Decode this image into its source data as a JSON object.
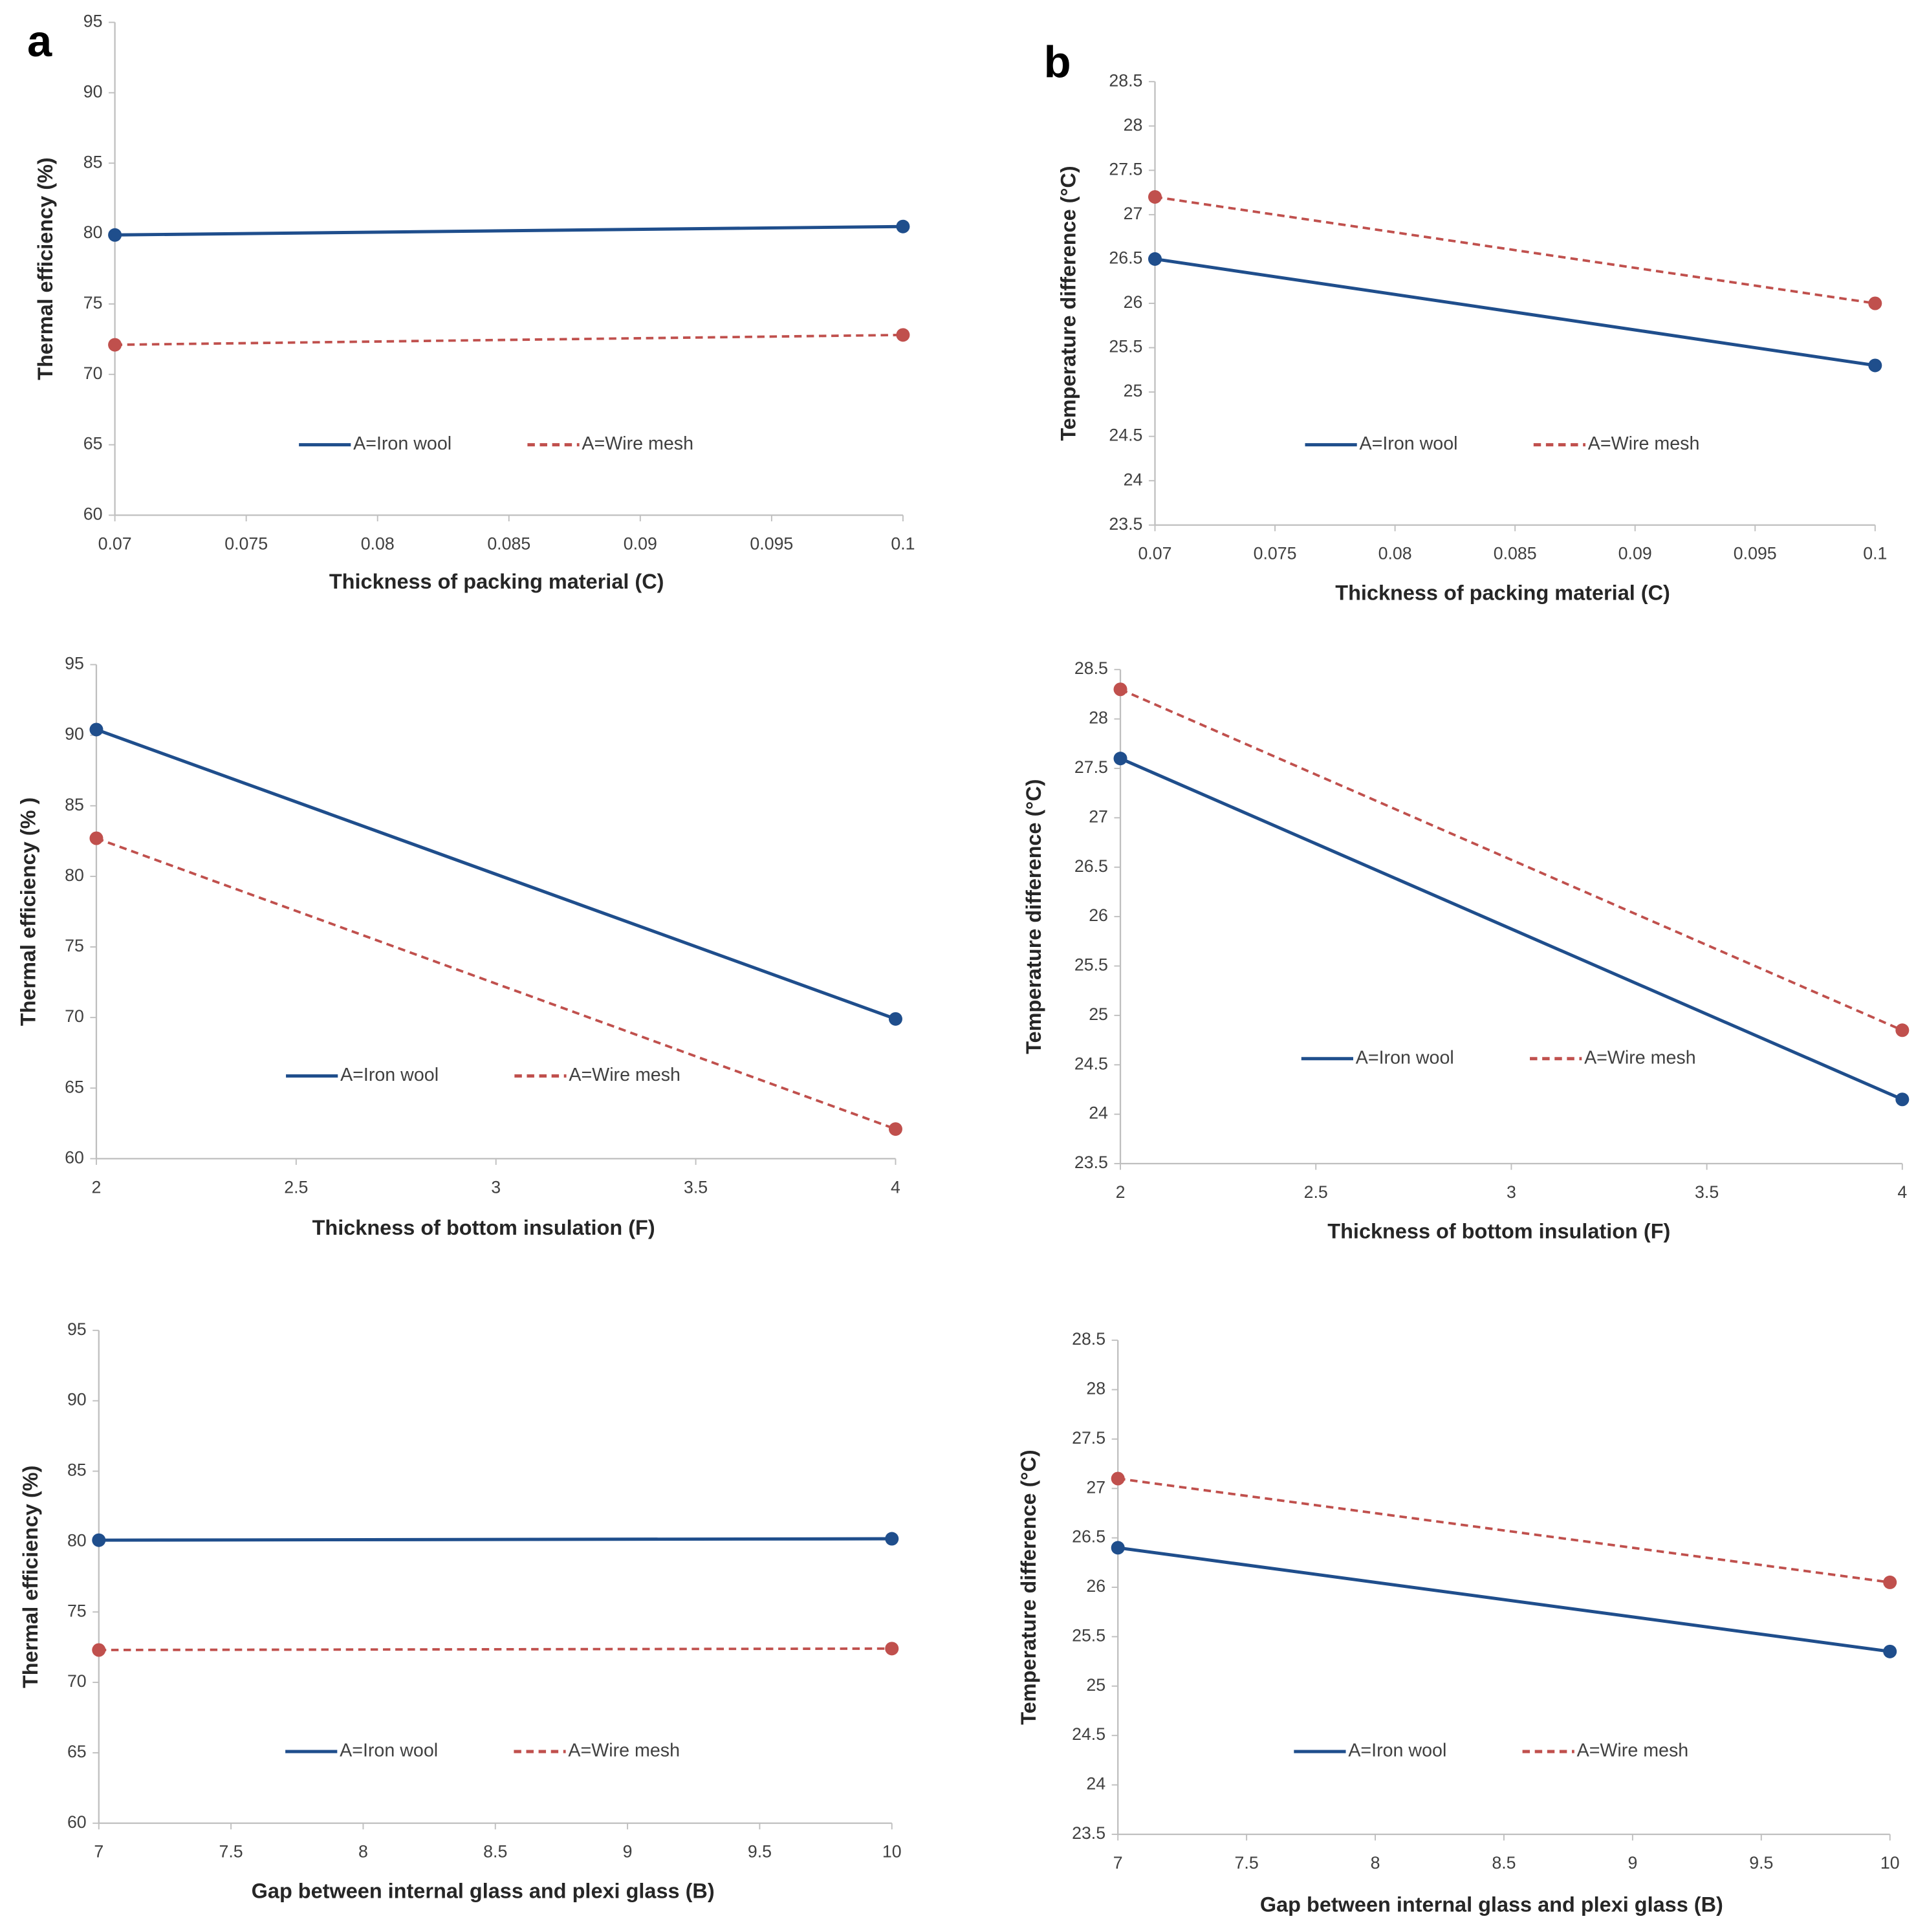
{
  "chart_data": [
    {
      "type": "line",
      "panel_label": "a",
      "x_label": "Thickness of packing material (C)",
      "y_label": "Thermal efficiency (%)",
      "x": [
        0.07,
        0.1
      ],
      "xlim": [
        0.07,
        0.1
      ],
      "xticks": [
        0.07,
        0.075,
        0.08,
        0.085,
        0.09,
        0.095,
        0.1
      ],
      "ylim": [
        60,
        95
      ],
      "yticks": [
        60,
        65,
        70,
        75,
        80,
        85,
        90,
        95
      ],
      "series": [
        {
          "name": "A=Iron wool",
          "color": "#1f4e8c",
          "line_style": "solid",
          "values": [
            79.9,
            80.5
          ]
        },
        {
          "name": "A=Wire mesh",
          "color": "#c0504d",
          "line_style": "dashed",
          "values": [
            72.1,
            72.8
          ]
        }
      ]
    },
    {
      "type": "line",
      "panel_label": "b",
      "x_label": "Thickness of packing material (C)",
      "y_label": "Temperature difference (°C)",
      "x": [
        0.07,
        0.1
      ],
      "xlim": [
        0.07,
        0.1
      ],
      "xticks": [
        0.07,
        0.075,
        0.08,
        0.085,
        0.09,
        0.095,
        0.1
      ],
      "ylim": [
        23.5,
        28.5
      ],
      "yticks": [
        23.5,
        24,
        24.5,
        25,
        25.5,
        26,
        26.5,
        27,
        27.5,
        28,
        28.5
      ],
      "series": [
        {
          "name": "A=Iron wool",
          "color": "#1f4e8c",
          "line_style": "solid",
          "values": [
            26.5,
            25.3
          ]
        },
        {
          "name": "A=Wire mesh",
          "color": "#c0504d",
          "line_style": "dashed",
          "values": [
            27.2,
            26.0
          ]
        }
      ]
    },
    {
      "type": "line",
      "x_label": "Thickness of bottom insulation (F)",
      "y_label": "Thermal efficiency (% )",
      "x": [
        2,
        4
      ],
      "xlim": [
        2,
        4
      ],
      "xticks": [
        2,
        2.5,
        3,
        3.5,
        4
      ],
      "ylim": [
        60,
        95
      ],
      "yticks": [
        60,
        65,
        70,
        75,
        80,
        85,
        90,
        95
      ],
      "series": [
        {
          "name": "A=Iron wool",
          "color": "#1f4e8c",
          "line_style": "solid",
          "values": [
            90.4,
            69.9
          ]
        },
        {
          "name": "A=Wire mesh",
          "color": "#c0504d",
          "line_style": "dashed",
          "values": [
            82.7,
            62.1
          ]
        }
      ]
    },
    {
      "type": "line",
      "x_label": "Thickness of bottom insulation (F)",
      "y_label": "Temperature difference (°C)",
      "x": [
        2,
        4
      ],
      "xlim": [
        2,
        4
      ],
      "xticks": [
        2,
        2.5,
        3,
        3.5,
        4
      ],
      "ylim": [
        23.5,
        28.5
      ],
      "yticks": [
        23.5,
        24,
        24.5,
        25,
        25.5,
        26,
        26.5,
        27,
        27.5,
        28,
        28.5
      ],
      "series": [
        {
          "name": "A=Iron wool",
          "color": "#1f4e8c",
          "line_style": "solid",
          "values": [
            27.6,
            24.15
          ]
        },
        {
          "name": "A=Wire mesh",
          "color": "#c0504d",
          "line_style": "dashed",
          "values": [
            28.3,
            24.85
          ]
        }
      ]
    },
    {
      "type": "line",
      "x_label": "Gap between internal glass and plexi glass (B)",
      "y_label": "Thermal efficiency (%)",
      "x": [
        7,
        10
      ],
      "xlim": [
        7,
        10
      ],
      "xticks": [
        7,
        7.5,
        8,
        8.5,
        9,
        9.5,
        10
      ],
      "ylim": [
        60,
        95
      ],
      "yticks": [
        60,
        65,
        70,
        75,
        80,
        85,
        90,
        95
      ],
      "series": [
        {
          "name": "A=Iron wool",
          "color": "#1f4e8c",
          "line_style": "solid",
          "values": [
            80.1,
            80.2
          ]
        },
        {
          "name": "A=Wire mesh",
          "color": "#c0504d",
          "line_style": "dashed",
          "values": [
            72.3,
            72.4
          ]
        }
      ]
    },
    {
      "type": "line",
      "x_label": "Gap between internal glass and plexi glass (B)",
      "y_label": "Temperature difference (°C)",
      "x": [
        7,
        10
      ],
      "xlim": [
        7,
        10
      ],
      "xticks": [
        7,
        7.5,
        8,
        8.5,
        9,
        9.5,
        10
      ],
      "ylim": [
        23.5,
        28.5
      ],
      "yticks": [
        23.5,
        24,
        24.5,
        25,
        25.5,
        26,
        26.5,
        27,
        27.5,
        28,
        28.5
      ],
      "series": [
        {
          "name": "A=Iron wool",
          "color": "#1f4e8c",
          "line_style": "solid",
          "values": [
            26.4,
            25.35
          ]
        },
        {
          "name": "A=Wire mesh",
          "color": "#c0504d",
          "line_style": "dashed",
          "values": [
            27.1,
            26.05
          ]
        }
      ]
    }
  ]
}
